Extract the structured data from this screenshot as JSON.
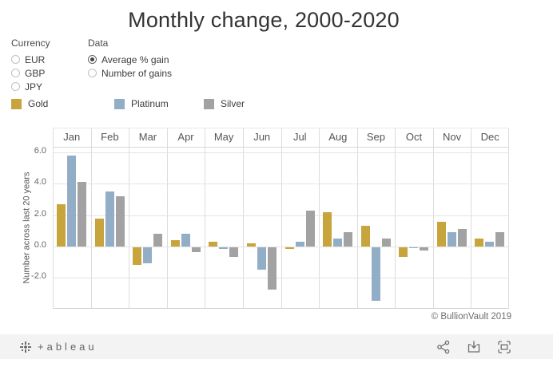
{
  "title": "Monthly change, 2000-2020",
  "filters": {
    "currency": {
      "label": "Currency",
      "options": [
        {
          "label": "EUR",
          "selected": false
        },
        {
          "label": "GBP",
          "selected": false
        },
        {
          "label": "JPY",
          "selected": false
        }
      ]
    },
    "data": {
      "label": "Data",
      "options": [
        {
          "label": "Average % gain",
          "selected": true
        },
        {
          "label": "Number of gains",
          "selected": false
        }
      ]
    }
  },
  "legend": [
    {
      "label": "Gold",
      "color": "#c8a43c",
      "x": 0
    },
    {
      "label": "Platinum",
      "color": "#92aec7",
      "x": 129
    },
    {
      "label": "Silver",
      "color": "#a2a2a2",
      "x": 241
    }
  ],
  "chart_data": {
    "type": "bar",
    "title": "Monthly change, 2000-2020",
    "ylabel": "Number across last 20 years",
    "xlabel": "",
    "categories": [
      "Jan",
      "Feb",
      "Mar",
      "Apr",
      "May",
      "Jun",
      "Jul",
      "Aug",
      "Sep",
      "Oct",
      "Nov",
      "Dec"
    ],
    "series": [
      {
        "name": "Gold",
        "color": "#c8a43c",
        "values": [
          2.7,
          1.8,
          -1.1,
          0.4,
          0.3,
          0.2,
          -0.1,
          2.2,
          1.3,
          -0.6,
          1.6,
          0.5
        ]
      },
      {
        "name": "Platinum",
        "color": "#92aec7",
        "values": [
          5.8,
          3.5,
          -1.0,
          0.8,
          -0.1,
          -1.4,
          0.3,
          0.5,
          -3.4,
          -0.05,
          0.9,
          0.3
        ]
      },
      {
        "name": "Silver",
        "color": "#a2a2a2",
        "values": [
          4.1,
          3.2,
          0.8,
          -0.3,
          -0.6,
          -2.7,
          2.3,
          0.9,
          0.5,
          -0.2,
          1.1,
          0.9
        ]
      }
    ],
    "ytick_labels": [
      "6.0",
      "4.0",
      "2.0",
      "0.0",
      "-2.0"
    ],
    "ytick_values": [
      6,
      4,
      2,
      0,
      -2
    ],
    "ylim": [
      -3.96,
      6.35
    ],
    "grid": true,
    "legend_position": "top-left"
  },
  "copyright": "© BullionVault 2019",
  "footer": {
    "logo_text": "+ableau",
    "icons": [
      "tableau-mark-icon",
      "share-icon",
      "download-icon",
      "fullscreen-icon"
    ]
  }
}
